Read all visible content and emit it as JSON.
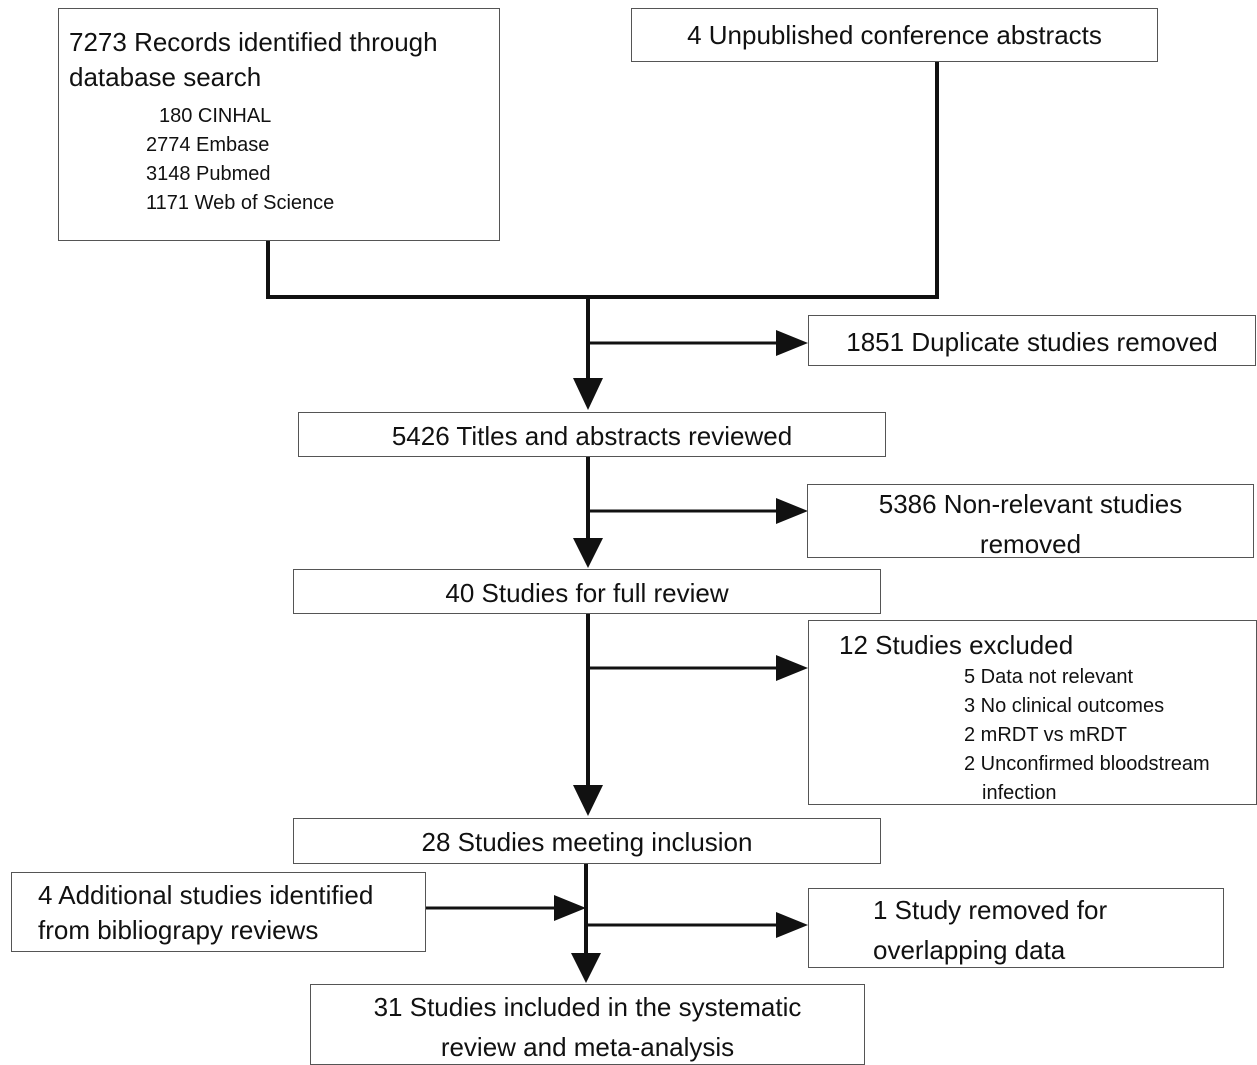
{
  "records": {
    "line1": "7273 Records identified through",
    "line2": "database search",
    "sources": [
      "180 CINHAL",
      "2774 Embase",
      "3148 Pubmed",
      "1171 Web of Science"
    ]
  },
  "conference": {
    "text": "4 Unpublished conference abstracts"
  },
  "duplicates": {
    "text": "1851 Duplicate studies removed"
  },
  "titles": {
    "text": "5426 Titles and abstracts reviewed"
  },
  "nonrelevant": {
    "line1": "5386 Non-relevant studies",
    "line2": "removed"
  },
  "fullreview": {
    "text": "40 Studies for full review"
  },
  "excluded": {
    "title": "12 Studies excluded",
    "reasons": [
      "5 Data not relevant",
      "3 No clinical outcomes",
      "2 mRDT vs mRDT",
      "2 Unconfirmed bloodstream",
      "infection"
    ]
  },
  "inclusion": {
    "text": "28 Studies meeting inclusion"
  },
  "bibliography": {
    "line1": "4 Additional studies identified",
    "line2": "from bibliograpy reviews"
  },
  "overlap": {
    "line1": "1 Study removed for",
    "line2": "overlapping data"
  },
  "final": {
    "line1": "31 Studies included in the systematic",
    "line2": "review and meta-analysis"
  }
}
